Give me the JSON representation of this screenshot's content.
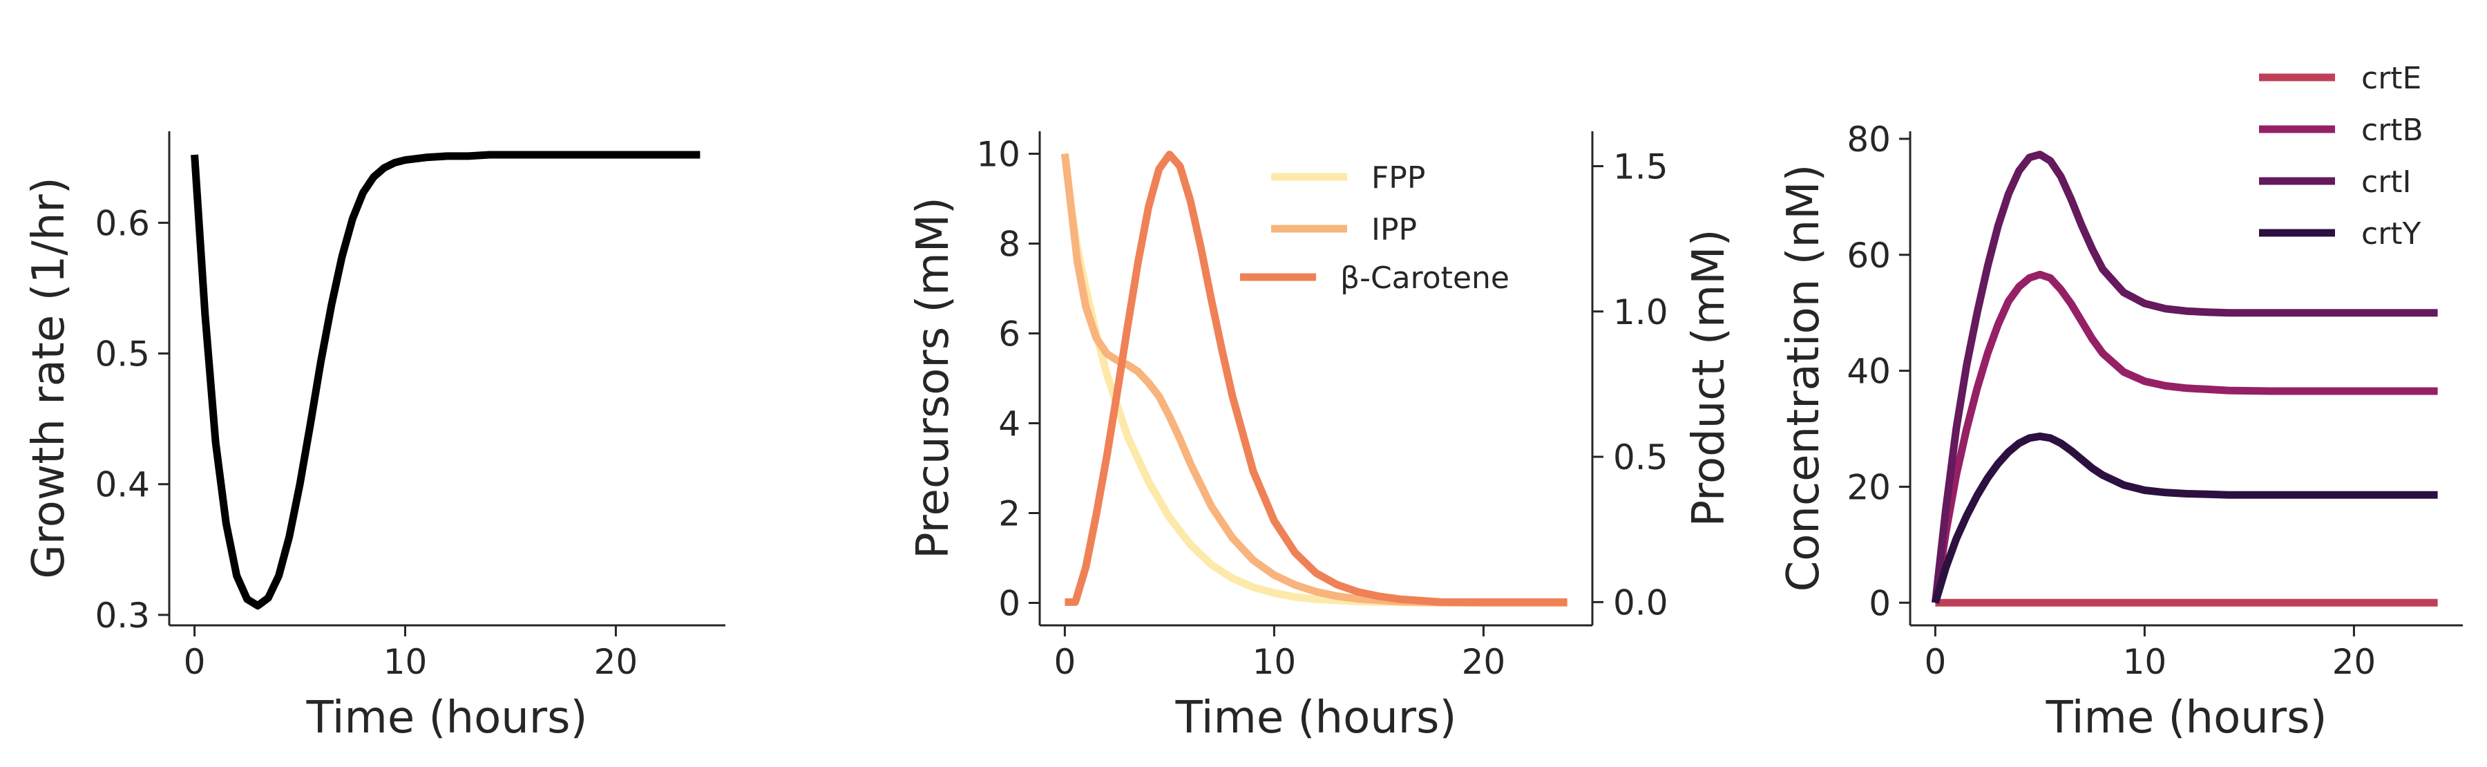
{
  "colors": {
    "growth": "#000000",
    "FPP": "#fde9a9",
    "IPP": "#f8b47c",
    "beta_carotene": "#ef8156",
    "crtE": "#c03f58",
    "crtB": "#962066",
    "crtI": "#641a5c",
    "crtY": "#2c1040",
    "axis": "#262626"
  },
  "chart_data": [
    {
      "type": "line",
      "xlabel": "Time (hours)",
      "ylabel": "Growth rate (1/hr)",
      "xlim": [
        -1.2,
        25.2
      ],
      "ylim": [
        0.292,
        0.67
      ],
      "xticks": [
        0,
        10,
        20
      ],
      "yticks": [
        0.3,
        0.4,
        0.5,
        0.6
      ],
      "series": [
        {
          "color_key": "growth",
          "x": [
            0,
            0.5,
            1,
            1.5,
            2,
            2.5,
            3,
            3.5,
            4,
            4.5,
            5,
            5.5,
            6,
            6.5,
            7,
            7.5,
            8,
            8.5,
            9,
            9.5,
            10,
            11,
            12,
            13,
            14,
            16,
            18,
            20,
            22,
            24
          ],
          "y": [
            0.652,
            0.53,
            0.432,
            0.37,
            0.33,
            0.312,
            0.307,
            0.313,
            0.33,
            0.36,
            0.4,
            0.446,
            0.494,
            0.537,
            0.574,
            0.603,
            0.623,
            0.635,
            0.642,
            0.646,
            0.648,
            0.65,
            0.651,
            0.651,
            0.652,
            0.652,
            0.652,
            0.652,
            0.652,
            0.652
          ]
        }
      ]
    },
    {
      "type": "line",
      "xlabel": "Time (hours)",
      "ylabel": "Precursors (mM)",
      "ylabel_right": "Product (mM)",
      "xlim": [
        -1.2,
        25.2
      ],
      "ylim": [
        -0.5,
        10.5
      ],
      "ylim_right": [
        -0.08,
        1.62
      ],
      "xticks": [
        0,
        10,
        20
      ],
      "yticks": [
        0,
        2,
        4,
        6,
        8,
        10
      ],
      "yticks_right": [
        0.0,
        0.5,
        1.0,
        1.5
      ],
      "legend_position": "top-right",
      "series": [
        {
          "name": "FPP",
          "color_key": "FPP",
          "axis": "left",
          "x": [
            0,
            0.3,
            0.6,
            1,
            1.5,
            2,
            3,
            4,
            5,
            6,
            7,
            8,
            9,
            10,
            11,
            12,
            14,
            16,
            18,
            20,
            22,
            24
          ],
          "y": [
            10,
            8.8,
            7.9,
            7.0,
            6.0,
            5.1,
            3.7,
            2.7,
            1.9,
            1.3,
            0.85,
            0.55,
            0.35,
            0.22,
            0.13,
            0.08,
            0.03,
            0.01,
            0.0,
            0.0,
            0.0,
            0.0
          ]
        },
        {
          "name": "IPP",
          "color_key": "IPP",
          "axis": "left",
          "x": [
            0,
            0.3,
            0.6,
            1,
            1.5,
            2,
            2.5,
            3,
            3.5,
            4,
            4.5,
            5,
            5.5,
            6,
            7,
            8,
            9,
            10,
            11,
            12,
            13,
            14,
            16,
            18,
            20,
            22,
            24
          ],
          "y": [
            10,
            8.8,
            7.6,
            6.6,
            5.9,
            5.55,
            5.4,
            5.3,
            5.15,
            4.9,
            4.6,
            4.15,
            3.65,
            3.1,
            2.15,
            1.45,
            0.95,
            0.62,
            0.4,
            0.25,
            0.15,
            0.09,
            0.03,
            0.01,
            0.0,
            0.0,
            0.0
          ]
        },
        {
          "name": "β-Carotene",
          "color_key": "beta_carotene",
          "axis": "right",
          "x": [
            0,
            0.5,
            1,
            1.5,
            2,
            2.5,
            3,
            3.5,
            4,
            4.5,
            5,
            5.5,
            6,
            6.5,
            7,
            7.5,
            8,
            9,
            10,
            11,
            12,
            13,
            14,
            15,
            16,
            18,
            20,
            22,
            24
          ],
          "y": [
            0,
            0.0,
            0.12,
            0.3,
            0.5,
            0.72,
            0.95,
            1.17,
            1.36,
            1.49,
            1.54,
            1.5,
            1.38,
            1.22,
            1.04,
            0.87,
            0.71,
            0.45,
            0.28,
            0.17,
            0.1,
            0.06,
            0.035,
            0.02,
            0.01,
            0.0,
            0.0,
            0.0,
            0.0
          ]
        }
      ]
    },
    {
      "type": "line",
      "xlabel": "Time (hours)",
      "ylabel": "Concentration (nM)",
      "xlim": [
        -1.2,
        25.2
      ],
      "ylim": [
        -3.9,
        81.3
      ],
      "xticks": [
        0,
        10,
        20
      ],
      "yticks": [
        0,
        20,
        40,
        60,
        80
      ],
      "legend_position": "top-right, above axes",
      "series": [
        {
          "name": "crtE",
          "color_key": "crtE",
          "x": [
            0,
            24
          ],
          "y": [
            0,
            0
          ]
        },
        {
          "name": "crtB",
          "color_key": "crtB",
          "x": [
            0,
            0.5,
            1,
            1.5,
            2,
            2.5,
            3,
            3.5,
            4,
            4.5,
            5,
            5.5,
            6,
            6.5,
            7,
            7.5,
            8,
            9,
            10,
            11,
            12,
            13,
            14,
            16,
            18,
            20,
            22,
            24
          ],
          "y": [
            0,
            12,
            22,
            30,
            37,
            43,
            48,
            52,
            54.5,
            56,
            56.6,
            56,
            54,
            51.5,
            48.5,
            45.5,
            43,
            39.8,
            38.2,
            37.4,
            37.0,
            36.8,
            36.6,
            36.5,
            36.5,
            36.5,
            36.5,
            36.5
          ]
        },
        {
          "name": "crtI",
          "color_key": "crtI",
          "x": [
            0,
            0.5,
            1,
            1.5,
            2,
            2.5,
            3,
            3.5,
            4,
            4.5,
            5,
            5.5,
            6,
            6.5,
            7,
            7.5,
            8,
            9,
            10,
            11,
            12,
            13,
            14,
            16,
            18,
            20,
            22,
            24
          ],
          "y": [
            0,
            16,
            30,
            41,
            50,
            58,
            65,
            70.5,
            74.5,
            76.8,
            77.3,
            76.2,
            73.5,
            69.5,
            65,
            61,
            57.5,
            53.5,
            51.6,
            50.7,
            50.3,
            50.1,
            50.0,
            50.0,
            50.0,
            50.0,
            50.0,
            50.0
          ]
        },
        {
          "name": "crtY",
          "color_key": "crtY",
          "x": [
            0,
            0.5,
            1,
            1.5,
            2,
            2.5,
            3,
            3.5,
            4,
            4.5,
            5,
            5.5,
            6,
            6.5,
            7,
            7.5,
            8,
            9,
            10,
            11,
            12,
            13,
            14,
            16,
            18,
            20,
            22,
            24
          ],
          "y": [
            0,
            6,
            11,
            15,
            18.5,
            21.5,
            24,
            26,
            27.5,
            28.4,
            28.7,
            28.4,
            27.5,
            26.2,
            24.7,
            23.2,
            22,
            20.3,
            19.4,
            19.0,
            18.8,
            18.7,
            18.6,
            18.6,
            18.6,
            18.6,
            18.6,
            18.6
          ]
        }
      ]
    }
  ]
}
